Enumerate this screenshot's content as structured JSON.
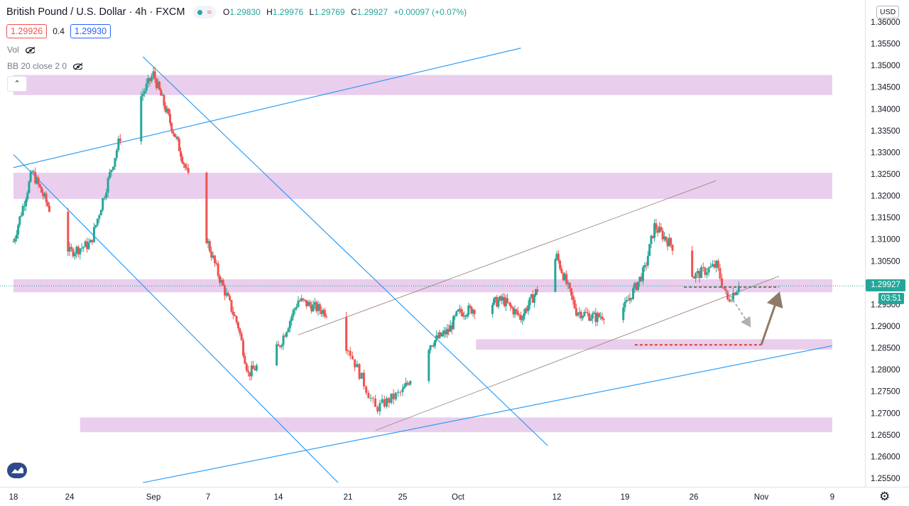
{
  "header": {
    "symbol": "British Pound / U.S. Dollar",
    "interval": "4h",
    "exchange": "FXCM",
    "open_label": "O",
    "open": "1.29830",
    "high_label": "H",
    "high": "1.29976",
    "low_label": "L",
    "low": "1.29769",
    "close_label": "C",
    "close": "1.29927",
    "change": "+0.00097 (+0.07%)"
  },
  "quote": {
    "sell": "1.29926",
    "spread": "0.4",
    "buy": "1.29930"
  },
  "indicators": {
    "vol": "Vol",
    "bb": "BB 20 close 2 0"
  },
  "currency_button": "USD",
  "last_price_tag": "1.29927",
  "countdown_tag": "03:51",
  "icons": {
    "logo": "tradingview-logo-icon",
    "settings": "gear-icon",
    "hide": "eye-off-icon",
    "collapse": "chevron-up-icon"
  },
  "colors": {
    "up": "#26a69a",
    "down": "#ef5350",
    "zone": "#e1bee7",
    "trendline_blue": "#2196f3",
    "channel_line": "#a1887f",
    "arrow": "#8d7b68"
  },
  "chart_data": {
    "type": "candlestick",
    "price_axis": {
      "min": 1.255,
      "max": 1.36,
      "ticks": [
        "1.36000",
        "1.35500",
        "1.35000",
        "1.34500",
        "1.34000",
        "1.33500",
        "1.33000",
        "1.32500",
        "1.32000",
        "1.31500",
        "1.31000",
        "1.30500",
        "1.30000",
        "1.29500",
        "1.29000",
        "1.28500",
        "1.28000",
        "1.27500",
        "1.27000",
        "1.26500",
        "1.26000",
        "1.25500"
      ]
    },
    "time_axis": {
      "labels": [
        "18",
        "24",
        "Sep",
        "7",
        "14",
        "21",
        "25",
        "Oct",
        "12",
        "19",
        "26",
        "Nov",
        "9"
      ],
      "label_dates": [
        "2020-08-18",
        "2020-08-24",
        "2020-09-01",
        "2020-09-07",
        "2020-09-14",
        "2020-09-21",
        "2020-09-25",
        "2020-10-01",
        "2020-10-12",
        "2020-10-19",
        "2020-10-26",
        "2020-11-01",
        "2020-11-09"
      ],
      "start": "2020-08-18",
      "end": "2020-11-09"
    },
    "key_points": [
      {
        "date": "2020-08-18",
        "price": 1.3095
      },
      {
        "date": "2020-08-20",
        "price": 1.3255
      },
      {
        "date": "2020-08-24",
        "price": 1.307
      },
      {
        "date": "2020-08-26",
        "price": 1.309
      },
      {
        "date": "2020-08-29",
        "price": 1.335
      },
      {
        "date": "2020-09-01",
        "price": 1.348
      },
      {
        "date": "2020-09-04",
        "price": 1.33
      },
      {
        "date": "2020-09-08",
        "price": 1.302
      },
      {
        "date": "2020-09-10",
        "price": 1.29
      },
      {
        "date": "2020-09-11",
        "price": 1.279
      },
      {
        "date": "2020-09-14",
        "price": 1.285
      },
      {
        "date": "2020-09-16",
        "price": 1.296
      },
      {
        "date": "2020-09-19",
        "price": 1.293
      },
      {
        "date": "2020-09-21",
        "price": 1.285
      },
      {
        "date": "2020-09-23",
        "price": 1.271
      },
      {
        "date": "2020-09-25",
        "price": 1.275
      },
      {
        "date": "2020-09-28",
        "price": 1.286
      },
      {
        "date": "2020-09-30",
        "price": 1.289
      },
      {
        "date": "2020-10-01",
        "price": 1.293
      },
      {
        "date": "2020-10-06",
        "price": 1.296
      },
      {
        "date": "2020-10-08",
        "price": 1.292
      },
      {
        "date": "2020-10-12",
        "price": 1.306
      },
      {
        "date": "2020-10-14",
        "price": 1.2935
      },
      {
        "date": "2020-10-16",
        "price": 1.292
      },
      {
        "date": "2020-10-19",
        "price": 1.2945
      },
      {
        "date": "2020-10-21",
        "price": 1.303
      },
      {
        "date": "2020-10-22",
        "price": 1.313
      },
      {
        "date": "2020-10-24",
        "price": 1.308
      },
      {
        "date": "2020-10-26",
        "price": 1.3015
      },
      {
        "date": "2020-10-28",
        "price": 1.304
      },
      {
        "date": "2020-10-29",
        "price": 1.296
      },
      {
        "date": "2020-10-30",
        "price": 1.29927
      }
    ],
    "zones": [
      {
        "from": 1.3432,
        "to": 1.3478,
        "start": "2020-08-18",
        "end": "2020-11-09"
      },
      {
        "from": 1.3193,
        "to": 1.3253,
        "start": "2020-08-18",
        "end": "2020-11-09"
      },
      {
        "from": 1.2978,
        "to": 1.3008,
        "start": "2020-08-18",
        "end": "2020-11-09"
      },
      {
        "from": 1.2846,
        "to": 1.287,
        "start": "2020-10-03",
        "end": "2020-11-09"
      },
      {
        "from": 1.2656,
        "to": 1.269,
        "start": "2020-08-25",
        "end": "2020-11-09"
      }
    ],
    "trendlines": [
      {
        "kind": "blue",
        "p1": {
          "date": "2020-08-18",
          "price": 1.3265
        },
        "p2": {
          "date": "2020-10-08",
          "price": 1.354
        }
      },
      {
        "kind": "blue",
        "p1": {
          "date": "2020-08-31",
          "price": 1.352
        },
        "p2": {
          "date": "2020-10-11",
          "price": 1.2625
        }
      },
      {
        "kind": "blue",
        "p1": {
          "date": "2020-08-18",
          "price": 1.3295
        },
        "p2": {
          "date": "2020-09-20",
          "price": 1.254
        }
      },
      {
        "kind": "blue",
        "p1": {
          "date": "2020-08-31",
          "price": 1.254
        },
        "p2": {
          "date": "2020-11-09",
          "price": 1.2855
        }
      },
      {
        "kind": "channel",
        "p1": {
          "date": "2020-09-16",
          "price": 1.288
        },
        "p2": {
          "date": "2020-10-28",
          "price": 1.3235
        }
      },
      {
        "kind": "channel",
        "p1": {
          "date": "2020-09-23",
          "price": 1.266
        },
        "p2": {
          "date": "2020-11-03",
          "price": 1.3015
        }
      }
    ],
    "annotations": [
      {
        "kind": "dashed-level",
        "color": "brown",
        "price": 1.299,
        "start": "2020-10-25",
        "end": "2020-11-03"
      },
      {
        "kind": "dashed-level",
        "color": "red",
        "price": 1.2857,
        "start": "2020-10-20",
        "end": "2020-11-01"
      },
      {
        "kind": "dotted-arrow",
        "from": {
          "date": "2020-10-29",
          "price": 1.298
        },
        "to": {
          "date": "2020-10-31",
          "price": 1.29
        }
      },
      {
        "kind": "solid-arrow",
        "from": {
          "date": "2020-11-01",
          "price": 1.2857
        },
        "to": {
          "date": "2020-11-03",
          "price": 1.2975
        }
      }
    ],
    "last_price": 1.29927,
    "grid": false
  }
}
